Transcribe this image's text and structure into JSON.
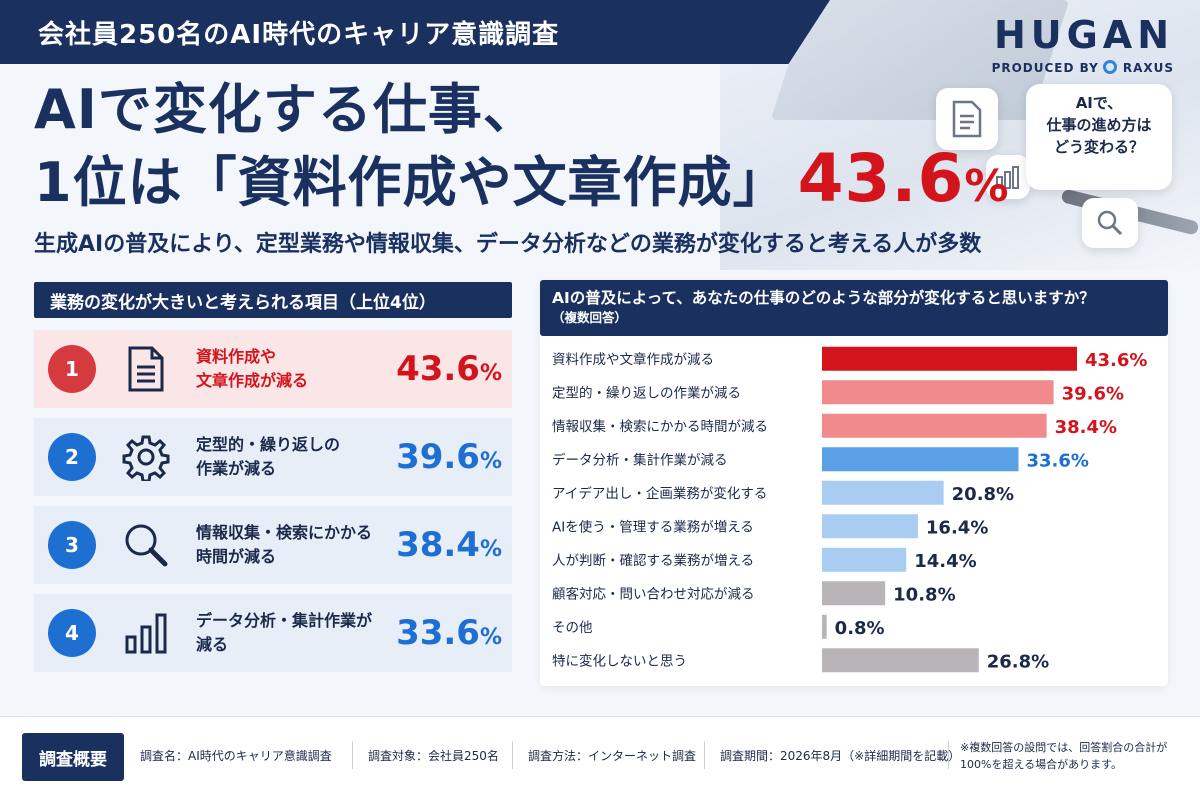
{
  "header": {
    "ribbon_title": "会社員250名のAI時代のキャリア意識調査",
    "brand_logo": "HUGAN",
    "brand_produced_by": "PRODUCED BY",
    "brand_company": "RAXUS",
    "bubble_lines": [
      "AIで、",
      "仕事の進め方は",
      "どう変わる？"
    ]
  },
  "headline": {
    "line1": "AIで変化する仕事、",
    "line2": "1位は「資料作成や文章作成」",
    "highlight_number": "43.6",
    "highlight_unit": "%",
    "subtitle": "生成AIの普及により、定型業務や情報収集、データ分析などの業務が変化すると考える人が多数"
  },
  "left_panel": {
    "title": "業務の変化が大きいと考えられる項目（上位4位）",
    "items": [
      {
        "rank": "1",
        "icon": "document-icon",
        "label_l1": "資料作成や",
        "label_l2": "文章作成が減る",
        "value": "43.6",
        "unit": "%"
      },
      {
        "rank": "2",
        "icon": "gear-icon",
        "label_l1": "定型的・繰り返しの",
        "label_l2": "作業が減る",
        "value": "39.6",
        "unit": "%"
      },
      {
        "rank": "3",
        "icon": "search-icon",
        "label_l1": "情報収集・検索にかかる",
        "label_l2": "時間が減る",
        "value": "38.4",
        "unit": "%"
      },
      {
        "rank": "4",
        "icon": "bar-chart-icon",
        "label_l1": "データ分析・集計作業が",
        "label_l2": "減る",
        "value": "33.6",
        "unit": "%"
      }
    ]
  },
  "right_panel": {
    "question": "AIの普及によって、あなたの仕事のどのような部分が変化すると思いますか？",
    "note": "（複数回答）"
  },
  "chart_data": {
    "type": "bar",
    "orientation": "horizontal",
    "categories": [
      "資料作成や文章作成が減る",
      "定型的・繰り返しの作業が減る",
      "情報収集・検索にかかる時間が減る",
      "データ分析・集計作業が減る",
      "アイデア出し・企画業務が変化する",
      "AIを使う・管理する業務が増える",
      "人が判断・確認する業務が増える",
      "顧客対応・問い合わせ対応が減る",
      "その他",
      "特に変化しないと思う"
    ],
    "values": [
      43.6,
      39.6,
      38.4,
      33.6,
      20.8,
      16.4,
      14.4,
      10.8,
      0.8,
      26.8
    ],
    "labels": [
      "43.6%",
      "39.6%",
      "38.4%",
      "33.6%",
      "20.8%",
      "16.4%",
      "14.4%",
      "10.8%",
      "0.8%",
      "26.8%"
    ],
    "colors": [
      "#d4141c",
      "#f08a8c",
      "#f08a8c",
      "#5aa0e6",
      "#a9cdf2",
      "#a9cdf2",
      "#a9cdf2",
      "#b9b4b8",
      "#b9b4b8",
      "#b9b4b8"
    ],
    "label_colors": [
      "#d4141c",
      "#d4141c",
      "#d4141c",
      "#1d6fd1",
      "#1b2a4a",
      "#1b2a4a",
      "#1b2a4a",
      "#1b2a4a",
      "#1b2a4a",
      "#1b2a4a"
    ],
    "xlim": [
      0,
      43.6
    ]
  },
  "footer": {
    "tag": "調査概要",
    "survey_name": "調査名：AI時代のキャリア意識調査",
    "survey_target": "調査対象：会社員250名",
    "survey_method": "調査方法：インターネット調査",
    "survey_period": "調査期間：2026年8月（※詳細期間を記載）",
    "note": "※複数回答の設問では、回答割合の合計が100%を超える場合があります。"
  },
  "colors": {
    "navy": "#1a3160",
    "red": "#d4141c",
    "blue": "#1d6fd1"
  }
}
